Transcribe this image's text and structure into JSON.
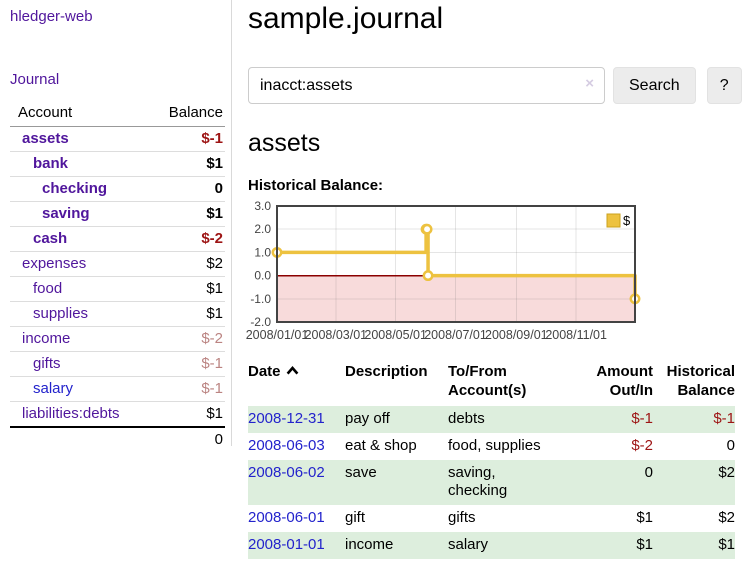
{
  "brand": "hledger-web",
  "sidebar": {
    "journal_link": "Journal",
    "header": {
      "account": "Account",
      "balance": "Balance"
    },
    "accounts": [
      {
        "name": "assets",
        "balance": "$-1"
      },
      {
        "name": "bank",
        "balance": "$1"
      },
      {
        "name": "checking",
        "balance": "0"
      },
      {
        "name": "saving",
        "balance": "$1"
      },
      {
        "name": "cash",
        "balance": "$-2"
      },
      {
        "name": "expenses",
        "balance": "$2"
      },
      {
        "name": "food",
        "balance": "$1"
      },
      {
        "name": "supplies",
        "balance": "$1"
      },
      {
        "name": "income",
        "balance": "$-2"
      },
      {
        "name": "gifts",
        "balance": "$-1"
      },
      {
        "name": "salary",
        "balance": "$-1"
      },
      {
        "name": "liabilities:debts",
        "balance": "$1"
      }
    ],
    "total": "0"
  },
  "header": {
    "title": "sample.journal"
  },
  "search": {
    "query": "inacct:assets",
    "clear_icon": "×",
    "button_label": "Search",
    "help_label": "?"
  },
  "account_page": {
    "title": "assets",
    "chart_title": "Historical Balance:"
  },
  "chart_data": {
    "type": "line",
    "title": "Historical Balance:",
    "legend": [
      {
        "label": "$",
        "color": "#EDC240"
      }
    ],
    "legend_position": "top-right",
    "grid": true,
    "x_axis": {
      "range_days": [
        0,
        365
      ],
      "ticks": [
        {
          "label": "2008/01/01",
          "day": 0
        },
        {
          "label": "2008/03/01",
          "day": 60
        },
        {
          "label": "2008/05/01",
          "day": 121
        },
        {
          "label": "2008/07/01",
          "day": 182
        },
        {
          "label": "2008/09/01",
          "day": 244
        },
        {
          "label": "2008/11/01",
          "day": 305
        }
      ]
    },
    "y_axis": {
      "range": [
        -2,
        3
      ],
      "ticks": [
        {
          "label": "3.0",
          "value": 3
        },
        {
          "label": "2.0",
          "value": 2
        },
        {
          "label": "1.0",
          "value": 1
        },
        {
          "label": "0.0",
          "value": 0
        },
        {
          "label": "-1.0",
          "value": -1
        },
        {
          "label": "-2.0",
          "value": -2
        }
      ]
    },
    "series": [
      {
        "name": "$",
        "color": "#EDC240",
        "style": "steps",
        "points": [
          {
            "date": "2008-01-01",
            "day": 0,
            "value": 1
          },
          {
            "date": "2008-06-01",
            "day": 152,
            "value": 2
          },
          {
            "date": "2008-06-02",
            "day": 153,
            "value": 2
          },
          {
            "date": "2008-06-03",
            "day": 154,
            "value": 0
          },
          {
            "date": "2008-12-31",
            "day": 365,
            "value": -1
          }
        ]
      }
    ],
    "styles": {
      "negative_region": "#f8dbdb",
      "zero_line": "#8b0000",
      "grid_line": "rgba(110,110,110,0.18)",
      "border": "#434343",
      "label_color": "#444444",
      "marker_fill": "#ffffff"
    }
  },
  "register": {
    "headers": {
      "date": "Date",
      "description": "Description",
      "accounts": "To/From Account(s)",
      "amount": "Amount Out/In",
      "balance": "Historical Balance"
    },
    "rows": [
      {
        "date": "2008-12-31",
        "description": "pay off",
        "accounts": "debts",
        "amount": "$-1",
        "balance": "$-1"
      },
      {
        "date": "2008-06-03",
        "description": "eat & shop",
        "accounts": "food, supplies",
        "amount": "$-2",
        "balance": "0"
      },
      {
        "date": "2008-06-02",
        "description": "save",
        "accounts": "saving,\nchecking",
        "amount": "0",
        "balance": "$2"
      },
      {
        "date": "2008-06-01",
        "description": "gift",
        "accounts": "gifts",
        "amount": "$1",
        "balance": "$2"
      },
      {
        "date": "2008-01-01",
        "description": "income",
        "accounts": "salary",
        "amount": "$1",
        "balance": "$1"
      }
    ]
  }
}
